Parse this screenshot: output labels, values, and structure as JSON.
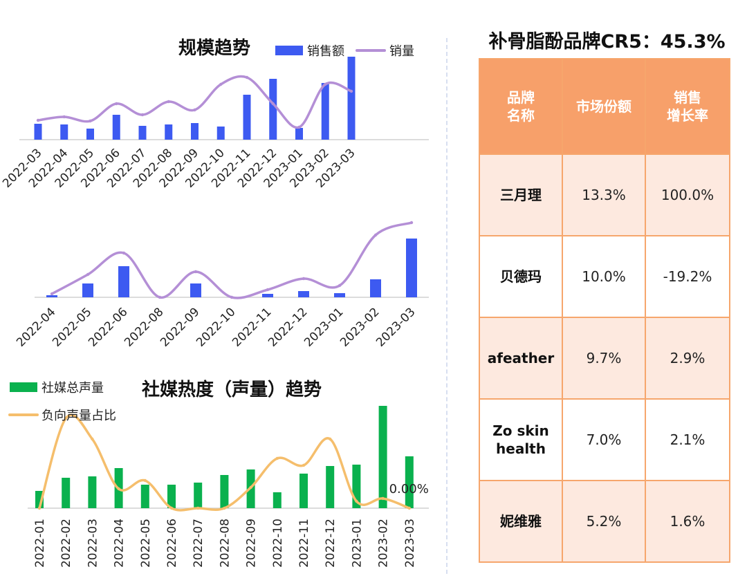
{
  "chart_data": [
    {
      "type": "bar+line",
      "title": "规模趋势",
      "legend": "top-right",
      "categories": [
        "2022-03",
        "2022-04",
        "2022-05",
        "2022-06",
        "2022-07",
        "2022-08",
        "2022-09",
        "2022-10",
        "2022-11",
        "2022-12",
        "2023-01",
        "2023-02",
        "2023-03"
      ],
      "series": [
        {
          "name": "销售额",
          "kind": "bar",
          "color": "#3d5af1",
          "values": [
            23,
            22,
            16,
            36,
            20,
            22,
            24,
            19,
            65,
            88,
            17,
            82,
            120
          ]
        },
        {
          "name": "销量",
          "kind": "line",
          "color": "#b48fd6",
          "values": [
            28,
            33,
            27,
            52,
            36,
            55,
            43,
            80,
            90,
            52,
            18,
            80,
            70
          ]
        }
      ],
      "ylim": [
        0,
        125
      ]
    },
    {
      "type": "bar+line",
      "title": "",
      "categories": [
        "2022-04",
        "2022-05",
        "2022-06",
        "2022-08",
        "2022-09",
        "2022-10",
        "2022-11",
        "2022-12",
        "2023-01",
        "2023-02",
        "2023-03"
      ],
      "series": [
        {
          "name": "",
          "kind": "bar",
          "color": "#3d5af1",
          "values": [
            3,
            20,
            45,
            0,
            20,
            0,
            5,
            9,
            6,
            26,
            85
          ]
        },
        {
          "name": "",
          "kind": "line",
          "color": "#b48fd6",
          "values": [
            5,
            33,
            64,
            0,
            37,
            0,
            11,
            27,
            17,
            90,
            108
          ]
        }
      ],
      "ylim": [
        0,
        115
      ]
    },
    {
      "type": "bar+line",
      "title": "社媒热度（声量）趋势",
      "legend": "top-left",
      "categories": [
        "2022-01",
        "2022-02",
        "2022-03",
        "2022-04",
        "2022-05",
        "2022-06",
        "2022-07",
        "2022-08",
        "2022-09",
        "2022-10",
        "2022-11",
        "2022-12",
        "2023-01",
        "2023-02",
        "2023-03"
      ],
      "series": [
        {
          "name": "社媒总声量",
          "kind": "bar",
          "color": "#0ab14e",
          "values": [
            25,
            44,
            46,
            58,
            34,
            34,
            37,
            48,
            56,
            23,
            50,
            61,
            63,
            148,
            75
          ]
        },
        {
          "name": "负向声量占比",
          "kind": "line",
          "color": "#f5be6c",
          "values": [
            0,
            130,
            100,
            28,
            40,
            0,
            0,
            0,
            30,
            72,
            62,
            100,
            10,
            14,
            0
          ]
        }
      ],
      "annotations": [
        "0.00%"
      ],
      "ylim": [
        0,
        150
      ]
    }
  ],
  "cr5_title": "补骨脂酚品牌CR5：45.3%",
  "table": {
    "headers": [
      "品牌\n名称",
      "市场份额",
      "销售\n增长率"
    ],
    "rows": [
      [
        "三月理",
        "13.3%",
        "100.0%"
      ],
      [
        "贝德玛",
        "10.0%",
        "-19.2%"
      ],
      [
        "afeather",
        "9.7%",
        "2.9%"
      ],
      [
        "Zo skin\nhealth",
        "7.0%",
        "2.1%"
      ],
      [
        "妮维雅",
        "5.2%",
        "1.6%"
      ]
    ]
  }
}
